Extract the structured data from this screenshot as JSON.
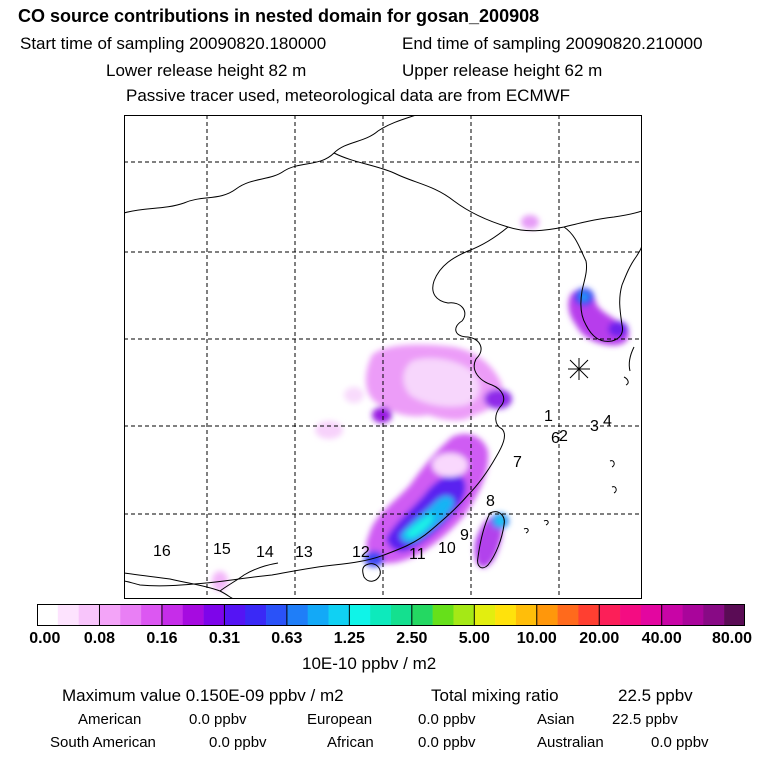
{
  "header": {
    "title": "CO  source contributions in nested domain for gosan_200908",
    "start_label": "Start time of sampling 20090820.180000",
    "end_label": "End time of sampling 20090820.210000",
    "lower_label": "Lower release height   82 m",
    "upper_label": "Upper release height   62 m",
    "tracer_note": "Passive tracer used, meteorological data are from ECMWF"
  },
  "map": {
    "region_labels": [
      "1",
      "2",
      "3",
      "4",
      "6",
      "7",
      "8",
      "9",
      "10",
      "11",
      "12",
      "13",
      "14",
      "15",
      "16"
    ],
    "receptor_marker": "asterisk-icon"
  },
  "colorbar": {
    "colors": [
      "#ffffff",
      "#fde3fe",
      "#f8c5fb",
      "#f3a4f8",
      "#e97ff5",
      "#dc57f2",
      "#c62de9",
      "#a60be0",
      "#7e05ea",
      "#5514f4",
      "#3a29f6",
      "#2a52f8",
      "#1f7ef8",
      "#13a9f7",
      "#10d1f3",
      "#0ff4e8",
      "#0deabc",
      "#14e08f",
      "#24d862",
      "#66e01a",
      "#a5e816",
      "#e2ee0f",
      "#ffe20c",
      "#ffbe0a",
      "#ff970b",
      "#ff6a1c",
      "#ff3f31",
      "#fc1f58",
      "#f40c82",
      "#e306a0",
      "#c805a6",
      "#a9059b",
      "#880a85",
      "#5a0c55"
    ],
    "tick_labels": [
      "0.00",
      "0.08",
      "0.16",
      "0.31",
      "0.63",
      "1.25",
      "2.50",
      "5.00",
      "10.00",
      "20.00",
      "40.00",
      "80.00"
    ],
    "units": "10E-10 ppbv / m2"
  },
  "stats": {
    "max_label": "Maximum value  0.150E-09 ppbv / m2",
    "total_label": "Total mixing ratio",
    "total_value": "22.5 ppbv",
    "american_label": "American",
    "american_value": "0.0 ppbv",
    "european_label": "European",
    "european_value": "0.0 ppbv",
    "asian_label": "Asian",
    "asian_value": "22.5 ppbv",
    "south_american_label": "South American",
    "south_american_value": "0.0 ppbv",
    "african_label": "African",
    "african_value": "0.0 ppbv",
    "australian_label": "Australian",
    "australian_value": "0.0 ppbv"
  }
}
